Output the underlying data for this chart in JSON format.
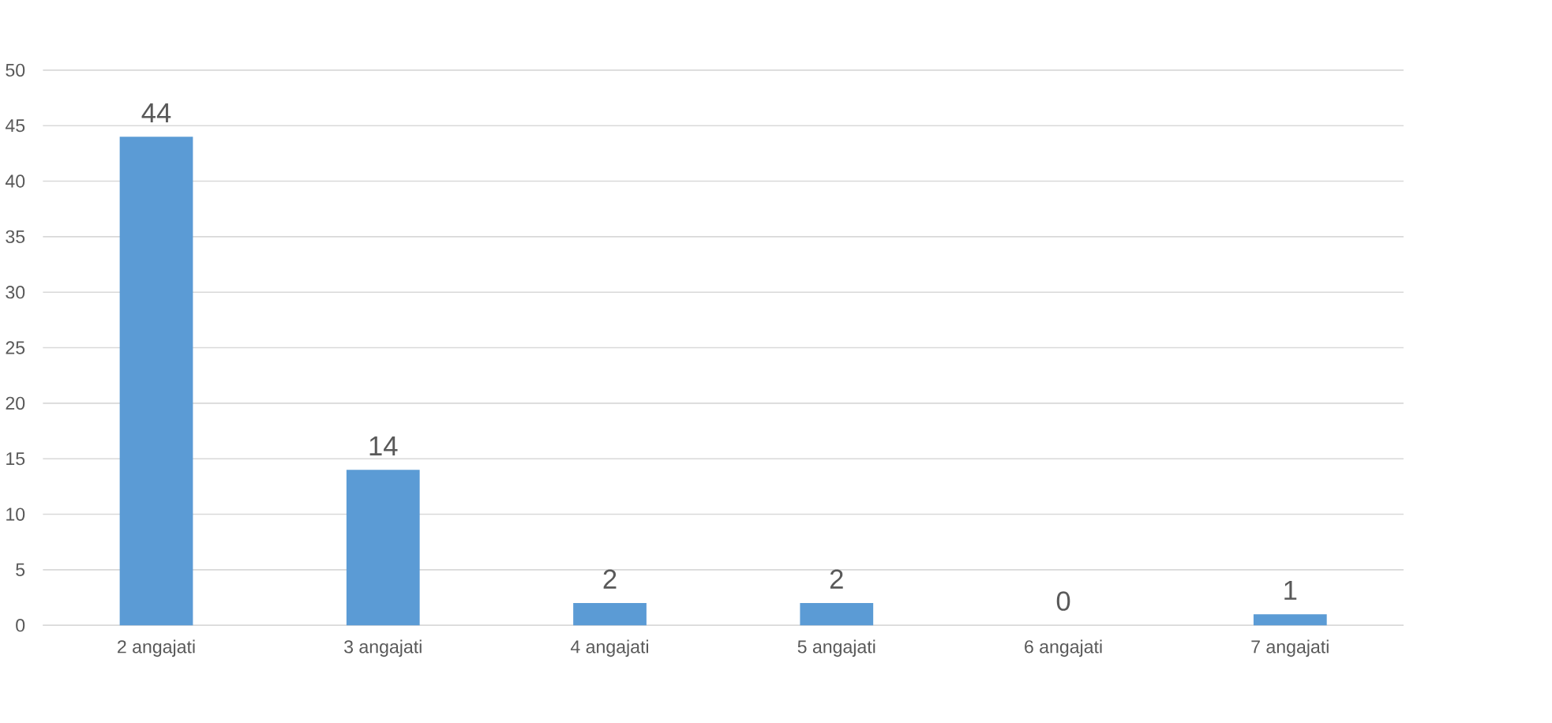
{
  "chart_data": {
    "type": "bar",
    "categories": [
      "2 angajati",
      "3 angajati",
      "4 angajati",
      "5 angajati",
      "6 angajati",
      "7 angajati"
    ],
    "values": [
      44,
      14,
      2,
      2,
      0,
      1
    ],
    "color": "#5b9bd5",
    "ylim": [
      0,
      50
    ],
    "yticks": [
      0,
      5,
      10,
      15,
      20,
      25,
      30,
      35,
      40,
      45,
      50
    ],
    "grid": "y",
    "data_labels": true
  }
}
